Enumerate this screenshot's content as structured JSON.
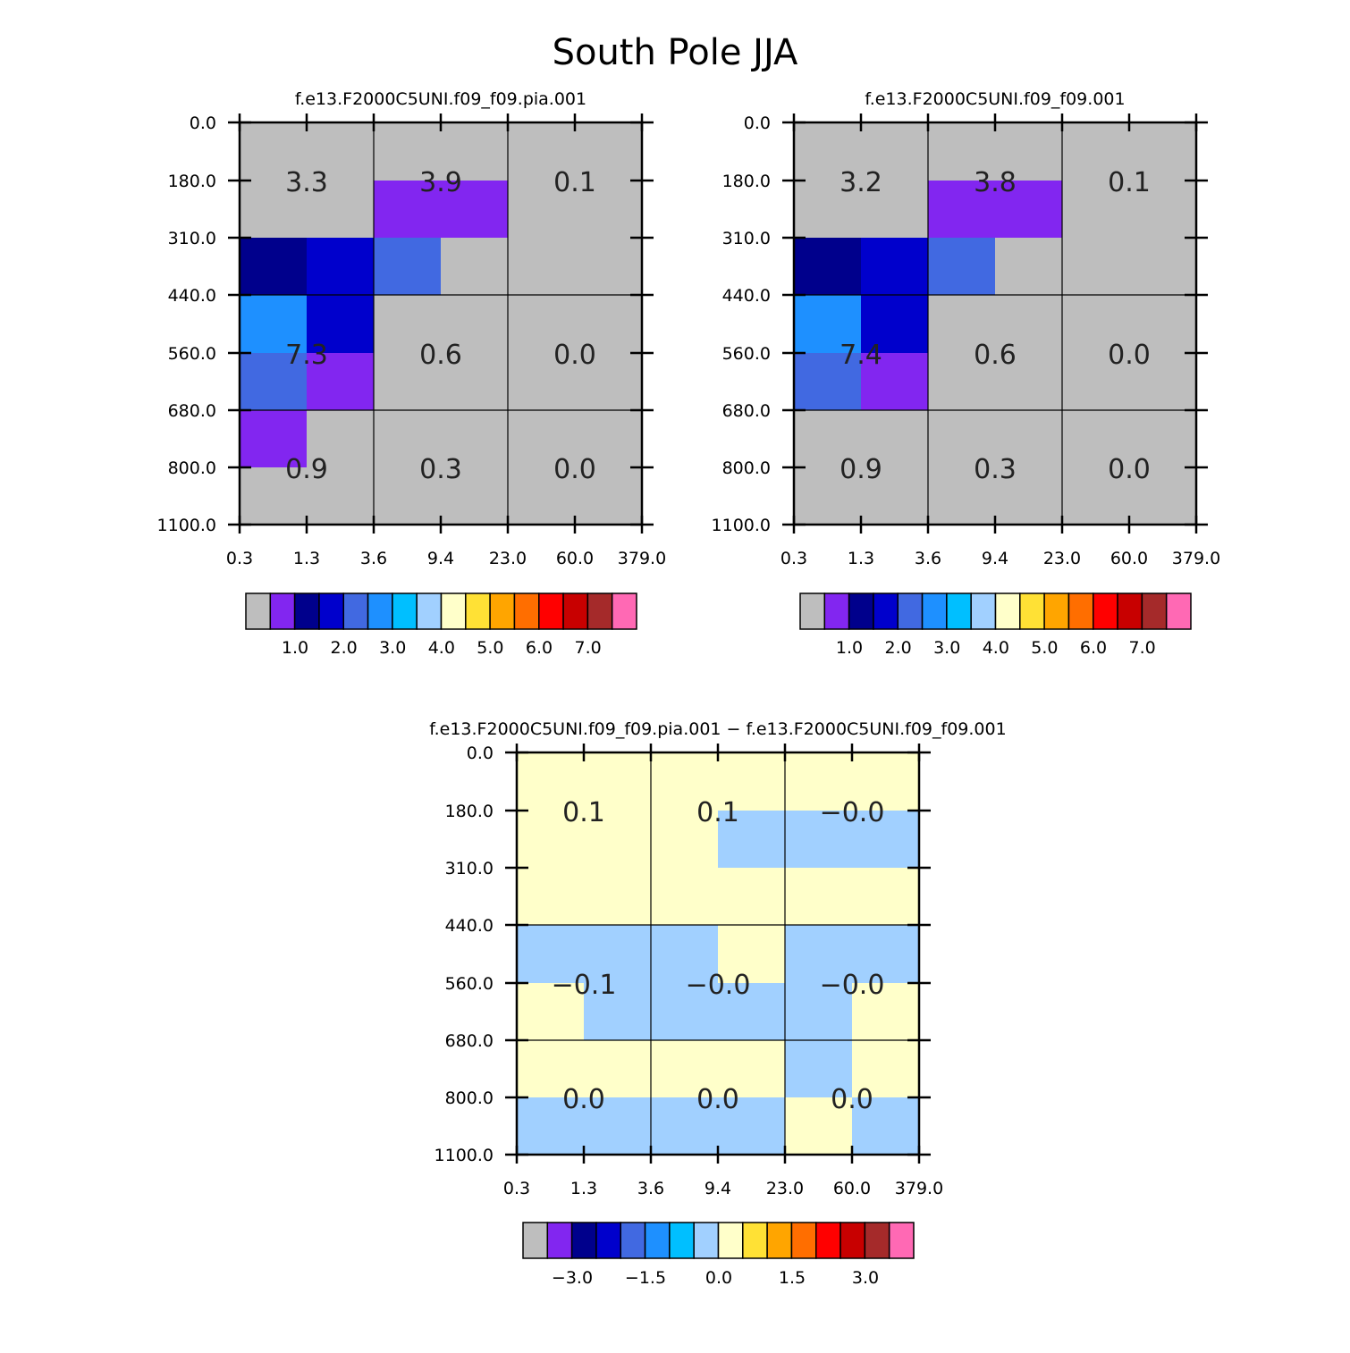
{
  "title": "South Pole JJA",
  "palette": [
    "#bebebe",
    "#8226f0",
    "#00008c",
    "#0000cc",
    "#4169e1",
    "#1e90ff",
    "#00bfff",
    "#a1d0ff",
    "#ffffca",
    "#ffe135",
    "#ffa500",
    "#ff6e00",
    "#ff0000",
    "#c80000",
    "#a52a2a",
    "#ff69b4"
  ],
  "chart_data": [
    {
      "type": "heatmap",
      "title": "f.e13.F2000C5UNI.f09_f09.pia.001",
      "x_ticks": [
        "0.3",
        "1.3",
        "3.6",
        "9.4",
        "23.0",
        "60.0",
        "379.0"
      ],
      "y_ticks": [
        "0.0",
        "180.0",
        "310.0",
        "440.0",
        "560.0",
        "680.0",
        "800.0",
        "1100.0"
      ],
      "cells": [
        [
          0,
          0,
          0,
          0,
          0,
          0
        ],
        [
          0,
          0,
          1,
          1,
          0,
          0
        ],
        [
          2,
          3,
          4,
          0,
          0,
          0
        ],
        [
          5,
          3,
          0,
          0,
          0,
          0
        ],
        [
          4,
          1,
          0,
          0,
          0,
          0
        ],
        [
          1,
          0,
          0,
          0,
          0,
          0
        ],
        [
          0,
          0,
          0,
          0,
          0,
          0
        ]
      ],
      "annotations": [
        [
          "3.3",
          "3.9",
          "0.1"
        ],
        [
          "7.3",
          "0.6",
          "0.0"
        ],
        [
          "0.9",
          "0.3",
          "0.0"
        ]
      ],
      "colorbar_labels": [
        "1.0",
        "2.0",
        "3.0",
        "4.0",
        "5.0",
        "6.0",
        "7.0"
      ]
    },
    {
      "type": "heatmap",
      "title": "f.e13.F2000C5UNI.f09_f09.001",
      "x_ticks": [
        "0.3",
        "1.3",
        "3.6",
        "9.4",
        "23.0",
        "60.0",
        "379.0"
      ],
      "y_ticks": [
        "0.0",
        "180.0",
        "310.0",
        "440.0",
        "560.0",
        "680.0",
        "800.0",
        "1100.0"
      ],
      "cells": [
        [
          0,
          0,
          0,
          0,
          0,
          0
        ],
        [
          0,
          0,
          1,
          1,
          0,
          0
        ],
        [
          2,
          3,
          4,
          0,
          0,
          0
        ],
        [
          5,
          3,
          0,
          0,
          0,
          0
        ],
        [
          4,
          1,
          0,
          0,
          0,
          0
        ],
        [
          0,
          0,
          0,
          0,
          0,
          0
        ],
        [
          0,
          0,
          0,
          0,
          0,
          0
        ]
      ],
      "annotations": [
        [
          "3.2",
          "3.8",
          "0.1"
        ],
        [
          "7.4",
          "0.6",
          "0.0"
        ],
        [
          "0.9",
          "0.3",
          "0.0"
        ]
      ],
      "colorbar_labels": [
        "1.0",
        "2.0",
        "3.0",
        "4.0",
        "5.0",
        "6.0",
        "7.0"
      ]
    },
    {
      "type": "heatmap",
      "title": "f.e13.F2000C5UNI.f09_f09.pia.001 − f.e13.F2000C5UNI.f09_f09.001",
      "x_ticks": [
        "0.3",
        "1.3",
        "3.6",
        "9.4",
        "23.0",
        "60.0",
        "379.0"
      ],
      "y_ticks": [
        "0.0",
        "180.0",
        "310.0",
        "440.0",
        "560.0",
        "680.0",
        "800.0",
        "1100.0"
      ],
      "cells": [
        [
          8,
          8,
          8,
          8,
          8,
          8
        ],
        [
          8,
          8,
          8,
          7,
          7,
          7
        ],
        [
          8,
          8,
          8,
          8,
          8,
          8
        ],
        [
          7,
          7,
          7,
          8,
          7,
          7
        ],
        [
          8,
          7,
          7,
          7,
          7,
          8
        ],
        [
          8,
          8,
          8,
          8,
          7,
          8
        ],
        [
          7,
          7,
          7,
          7,
          8,
          7
        ]
      ],
      "annotations": [
        [
          "0.1",
          "0.1",
          "−0.0"
        ],
        [
          "−0.1",
          "−0.0",
          "−0.0"
        ],
        [
          "0.0",
          "0.0",
          "0.0"
        ]
      ],
      "colorbar_labels": [
        "−3.0",
        "−1.5",
        "0.0",
        "1.5",
        "3.0"
      ]
    }
  ]
}
